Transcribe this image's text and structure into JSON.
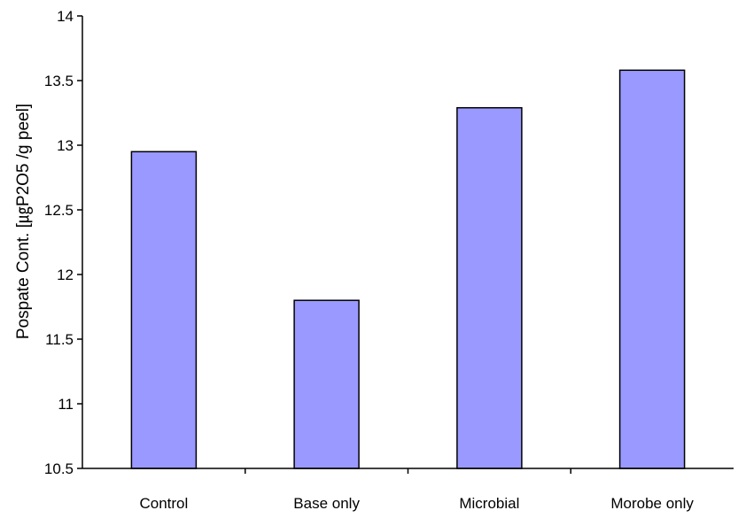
{
  "chart_data": {
    "type": "bar",
    "categories": [
      "Control",
      "Base only",
      "Microbial",
      "Morobe only"
    ],
    "values": [
      12.95,
      11.8,
      13.29,
      13.58
    ],
    "title": "",
    "xlabel": "",
    "ylabel": "Pospate Cont. [㎍P2O5 /g peel]",
    "ylim": [
      10.5,
      14
    ],
    "yticks": [
      "10.5",
      "11",
      "11.5",
      "12",
      "12.5",
      "13",
      "13.5",
      "14"
    ],
    "grid": false,
    "legend": "none",
    "colors": {
      "bar_fill": "#9999ff",
      "bar_stroke": "#000000",
      "axis": "#000000"
    }
  }
}
